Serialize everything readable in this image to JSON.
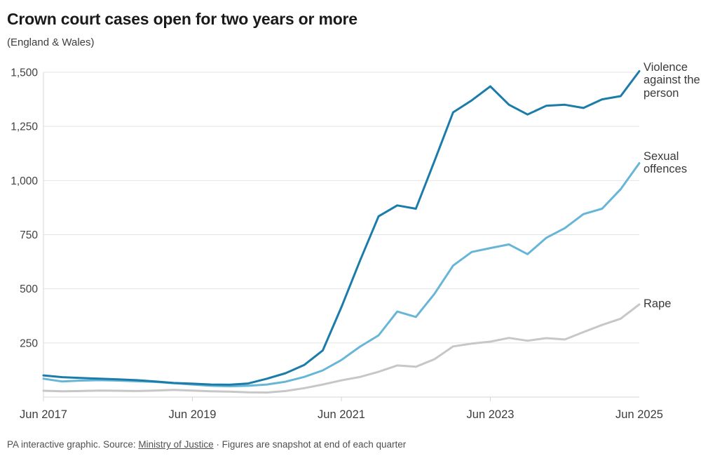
{
  "title": "Crown court cases open for two years or more",
  "subtitle": "(England & Wales)",
  "footer": {
    "prefix": "PA interactive graphic. Source: ",
    "source_link": "Ministry of Justice",
    "separator": " · ",
    "suffix": "Figures are snapshot at end of each quarter"
  },
  "chart_data": {
    "type": "line",
    "title": "Crown court cases open for two years or more",
    "subtitle": "(England & Wales)",
    "x": [
      "Jun 2017",
      "Sep 2017",
      "Dec 2017",
      "Mar 2018",
      "Jun 2018",
      "Sep 2018",
      "Dec 2018",
      "Mar 2019",
      "Jun 2019",
      "Sep 2019",
      "Dec 2019",
      "Mar 2020",
      "Jun 2020",
      "Sep 2020",
      "Dec 2020",
      "Mar 2021",
      "Jun 2021",
      "Sep 2021",
      "Dec 2021",
      "Mar 2022",
      "Jun 2022",
      "Sep 2022",
      "Dec 2022",
      "Mar 2023",
      "Jun 2023",
      "Sep 2023",
      "Dec 2023",
      "Mar 2024",
      "Jun 2024",
      "Sep 2024",
      "Dec 2024",
      "Mar 2025",
      "Jun 2025"
    ],
    "x_tick_indices": [
      0,
      8,
      16,
      24,
      32
    ],
    "x_tick_labels": [
      "Jun 2017",
      "Jun 2019",
      "Jun 2021",
      "Jun 2023",
      "Jun 2025"
    ],
    "y_ticks": [
      250,
      500,
      750,
      1000,
      1250,
      1500
    ],
    "y_tick_labels": [
      "250",
      "500",
      "750",
      "1,000",
      "1,250",
      "1,500"
    ],
    "ylim": [
      0,
      1500
    ],
    "grid": "horizontal",
    "legend_position": "right-of-line-ends",
    "series": [
      {
        "id": "violence",
        "name": "Violence against the person",
        "color": "#1b7caa",
        "values": [
          100,
          92,
          88,
          85,
          82,
          78,
          72,
          65,
          62,
          58,
          57,
          63,
          85,
          110,
          148,
          215,
          415,
          630,
          835,
          885,
          870,
          1090,
          1315,
          1370,
          1435,
          1350,
          1305,
          1345,
          1350,
          1335,
          1375,
          1390,
          1505
        ]
      },
      {
        "id": "sexual-offences",
        "name": "Sexual offences",
        "color": "#67b6d8",
        "values": [
          85,
          72,
          76,
          78,
          76,
          73,
          70,
          64,
          58,
          52,
          50,
          52,
          58,
          71,
          93,
          123,
          171,
          233,
          285,
          395,
          370,
          477,
          607,
          670,
          688,
          705,
          660,
          735,
          780,
          845,
          870,
          960,
          1080
        ]
      },
      {
        "id": "rape",
        "name": "Rape",
        "color": "#c7c7c7",
        "values": [
          29,
          27,
          28,
          30,
          29,
          28,
          30,
          33,
          30,
          27,
          25,
          22,
          21,
          28,
          41,
          58,
          77,
          93,
          117,
          146,
          140,
          175,
          234,
          247,
          256,
          273,
          260,
          272,
          266,
          300,
          333,
          362,
          428
        ]
      }
    ]
  }
}
